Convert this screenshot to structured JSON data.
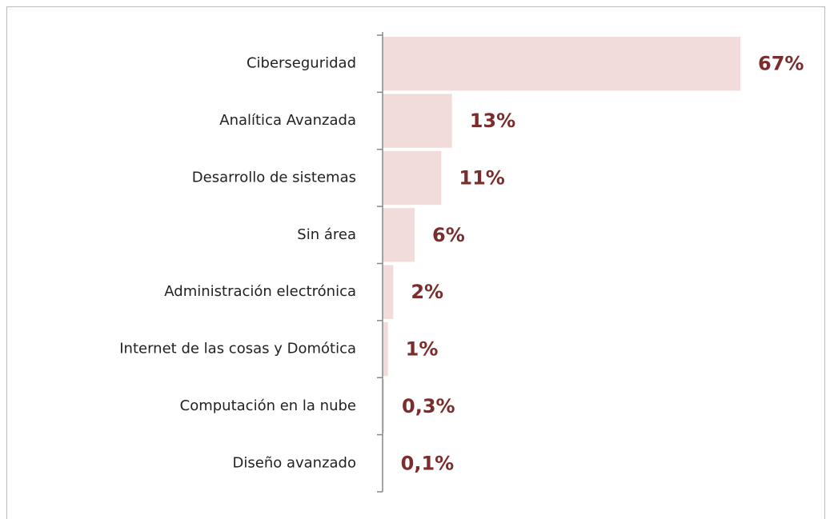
{
  "chart_data": {
    "type": "barh",
    "categories": [
      "Ciberseguridad",
      "Analítica Avanzada",
      "Desarrollo de sistemas",
      "Sin área",
      "Administración electrónica",
      "Internet de las cosas y Domótica",
      "Computación en la nube",
      "Diseño avanzado"
    ],
    "values": [
      67,
      13,
      11,
      6,
      2,
      1,
      0.3,
      0.1
    ],
    "value_labels": [
      "67%",
      "13%",
      "11%",
      "6%",
      "2%",
      "1%",
      "0,3%",
      "0,1%"
    ],
    "color": "#f2dcdb"
  }
}
